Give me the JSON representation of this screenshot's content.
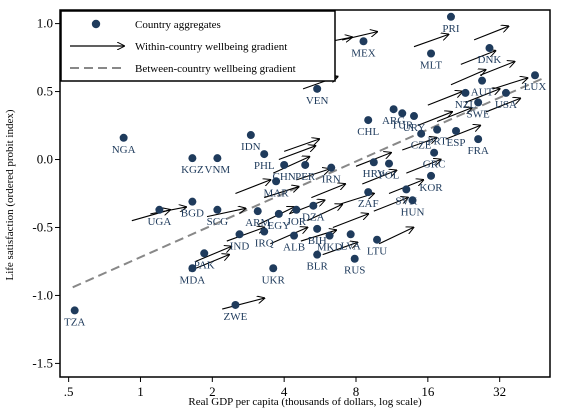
{
  "chart_data": {
    "type": "scatter",
    "xlabel": "Real GDP per capita (thousands of dollars, log scale)",
    "ylabel": "Life satisfaction (ordered probit index)",
    "x_scale": "log",
    "x_ticks": [
      {
        "value": 0.5,
        "label": ".5"
      },
      {
        "value": 1,
        "label": "1"
      },
      {
        "value": 2,
        "label": "2"
      },
      {
        "value": 4,
        "label": "4"
      },
      {
        "value": 8,
        "label": "8"
      },
      {
        "value": 16,
        "label": "16"
      },
      {
        "value": 32,
        "label": "32"
      }
    ],
    "y_ticks": [
      {
        "value": -1.5,
        "label": "-1.5"
      },
      {
        "value": -1.0,
        "label": "-1.0"
      },
      {
        "value": -0.5,
        "label": "-0.5"
      },
      {
        "value": 0.0,
        "label": "0.0"
      },
      {
        "value": 0.5,
        "label": "0.5"
      },
      {
        "value": 1.0,
        "label": "1.0"
      }
    ],
    "xlim": [
      0.46,
      52
    ],
    "ylim": [
      -1.6,
      1.1
    ],
    "grid": false,
    "legend_position": "top-left",
    "legend": {
      "points_label": "Country aggregates",
      "arrows_label": "Within-country wellbeing gradient",
      "line_label": "Between-country wellbeing gradient"
    },
    "colors": {
      "points": "#1f3b5c",
      "arrows": "#000000",
      "line": "#888888"
    },
    "between_line": {
      "x1": 0.52,
      "y1": -0.94,
      "x2": 49,
      "y2": 0.6
    },
    "points": [
      {
        "label": "TZA",
        "x": 0.53,
        "y": -1.11
      },
      {
        "label": "NGA",
        "x": 0.85,
        "y": 0.16
      },
      {
        "label": "UGA",
        "x": 1.2,
        "y": -0.37
      },
      {
        "label": "BGD",
        "x": 1.65,
        "y": -0.31
      },
      {
        "label": "KGZ",
        "x": 1.65,
        "y": 0.01
      },
      {
        "label": "VNM",
        "x": 2.1,
        "y": 0.01
      },
      {
        "label": "MDA",
        "x": 1.65,
        "y": -0.8
      },
      {
        "label": "PAK",
        "x": 1.85,
        "y": -0.69
      },
      {
        "label": "ZWE",
        "x": 2.5,
        "y": -1.07
      },
      {
        "label": "SCG",
        "x": 2.1,
        "y": -0.37
      },
      {
        "label": "IND",
        "x": 2.6,
        "y": -0.55
      },
      {
        "label": "IDN",
        "x": 2.9,
        "y": 0.18
      },
      {
        "label": "PHL",
        "x": 3.3,
        "y": 0.04
      },
      {
        "label": "UKR",
        "x": 3.6,
        "y": -0.8
      },
      {
        "label": "MAR",
        "x": 3.7,
        "y": -0.16
      },
      {
        "label": "CHN",
        "x": 4.0,
        "y": -0.04
      },
      {
        "label": "ARM",
        "x": 3.1,
        "y": -0.38
      },
      {
        "label": "EGY",
        "x": 3.8,
        "y": -0.4
      },
      {
        "label": "JOR",
        "x": 4.5,
        "y": -0.37
      },
      {
        "label": "IRQ",
        "x": 3.3,
        "y": -0.53
      },
      {
        "label": "ALB",
        "x": 4.4,
        "y": -0.56
      },
      {
        "label": "PER",
        "x": 4.9,
        "y": -0.04
      },
      {
        "label": "IRN",
        "x": 6.3,
        "y": -0.06
      },
      {
        "label": "BLR",
        "x": 5.5,
        "y": -0.7
      },
      {
        "label": "DZA",
        "x": 5.3,
        "y": -0.34
      },
      {
        "label": "BIH",
        "x": 5.5,
        "y": -0.51
      },
      {
        "label": "MKD",
        "x": 6.2,
        "y": -0.56
      },
      {
        "label": "LVA",
        "x": 7.6,
        "y": -0.55
      },
      {
        "label": "RUS",
        "x": 7.9,
        "y": -0.73
      },
      {
        "label": "LTU",
        "x": 9.8,
        "y": -0.59
      },
      {
        "label": "VEN",
        "x": 5.5,
        "y": 0.52
      },
      {
        "label": "MEX",
        "x": 8.6,
        "y": 0.87
      },
      {
        "label": "CHL",
        "x": 9.0,
        "y": 0.29
      },
      {
        "label": "HRV",
        "x": 9.5,
        "y": -0.02
      },
      {
        "label": "POL",
        "x": 11.0,
        "y": -0.03
      },
      {
        "label": "ZAF",
        "x": 9.0,
        "y": -0.24
      },
      {
        "label": "SVK",
        "x": 13.0,
        "y": -0.22
      },
      {
        "label": "HUN",
        "x": 13.8,
        "y": -0.3
      },
      {
        "label": "KOR",
        "x": 16.5,
        "y": -0.12
      },
      {
        "label": "GRC",
        "x": 17.0,
        "y": 0.05
      },
      {
        "label": "CZE",
        "x": 15.0,
        "y": 0.19
      },
      {
        "label": "URY",
        "x": 14.0,
        "y": 0.32
      },
      {
        "label": "TUR",
        "x": 12.5,
        "y": 0.34
      },
      {
        "label": "ARG",
        "x": 11.5,
        "y": 0.37
      },
      {
        "label": "PRT",
        "x": 17.5,
        "y": 0.22
      },
      {
        "label": "ESP",
        "x": 21.0,
        "y": 0.21
      },
      {
        "label": "FRA",
        "x": 26.0,
        "y": 0.15
      },
      {
        "label": "MLT",
        "x": 16.5,
        "y": 0.78
      },
      {
        "label": "PRI",
        "x": 20.0,
        "y": 1.05
      },
      {
        "label": "DNK",
        "x": 29.0,
        "y": 0.82
      },
      {
        "label": "NZL",
        "x": 23.0,
        "y": 0.49
      },
      {
        "label": "AUT",
        "x": 27.0,
        "y": 0.58
      },
      {
        "label": "SWE",
        "x": 26.0,
        "y": 0.42
      },
      {
        "label": "USA",
        "x": 34.0,
        "y": 0.49
      },
      {
        "label": "LUX",
        "x": 45.0,
        "y": 0.62
      }
    ],
    "within_arrows": [
      {
        "x": 0.92,
        "y": -0.45,
        "x2": 1.33,
        "y2": -0.37
      },
      {
        "x": 1.1,
        "y": -0.4,
        "x2": 1.55,
        "y2": -0.35
      },
      {
        "x": 1.6,
        "y": -0.82,
        "x2": 2.35,
        "y2": -0.7
      },
      {
        "x": 1.7,
        "y": -0.75,
        "x2": 2.4,
        "y2": -0.64
      },
      {
        "x": 1.9,
        "y": -0.42,
        "x2": 2.75,
        "y2": -0.36
      },
      {
        "x": 2.3,
        "y": -0.6,
        "x2": 3.3,
        "y2": -0.5
      },
      {
        "x": 2.5,
        "y": -0.25,
        "x2": 3.5,
        "y2": -0.15
      },
      {
        "x": 2.2,
        "y": -1.1,
        "x2": 3.3,
        "y2": -1.02
      },
      {
        "x": 3.1,
        "y": -0.48,
        "x2": 4.4,
        "y2": -0.35
      },
      {
        "x": 3.5,
        "y": -0.62,
        "x2": 5.0,
        "y2": -0.5
      },
      {
        "x": 3.3,
        "y": -0.28,
        "x2": 4.6,
        "y2": -0.2
      },
      {
        "x": 3.6,
        "y": -0.1,
        "x2": 5.1,
        "y2": 0.02
      },
      {
        "x": 3.8,
        "y": 0.0,
        "x2": 5.4,
        "y2": 0.1
      },
      {
        "x": 4.2,
        "y": -0.4,
        "x2": 5.9,
        "y2": -0.3
      },
      {
        "x": 4.5,
        "y": -0.15,
        "x2": 6.2,
        "y2": -0.07
      },
      {
        "x": 4.0,
        "y": 0.06,
        "x2": 5.6,
        "y2": 0.15
      },
      {
        "x": 4.7,
        "y": -0.6,
        "x2": 6.6,
        "y2": -0.52
      },
      {
        "x": 5.0,
        "y": -0.45,
        "x2": 7.0,
        "y2": -0.33
      },
      {
        "x": 5.2,
        "y": -0.28,
        "x2": 7.2,
        "y2": -0.18
      },
      {
        "x": 5.8,
        "y": -0.7,
        "x2": 8.1,
        "y2": -0.61
      },
      {
        "x": 6.4,
        "y": -0.5,
        "x2": 9.0,
        "y2": -0.4
      },
      {
        "x": 6.8,
        "y": -0.33,
        "x2": 9.5,
        "y2": -0.25
      },
      {
        "x": 4.8,
        "y": 0.52,
        "x2": 6.7,
        "y2": 0.61
      },
      {
        "x": 5.5,
        "y": 0.85,
        "x2": 7.7,
        "y2": 0.9
      },
      {
        "x": 7.0,
        "y": 0.88,
        "x2": 9.8,
        "y2": 0.94
      },
      {
        "x": 8.0,
        "y": -0.05,
        "x2": 11.2,
        "y2": 0.05
      },
      {
        "x": 8.5,
        "y": -0.18,
        "x2": 11.8,
        "y2": -0.08
      },
      {
        "x": 9.5,
        "y": -0.38,
        "x2": 13.2,
        "y2": -0.28
      },
      {
        "x": 10.0,
        "y": -0.62,
        "x2": 13.9,
        "y2": -0.5
      },
      {
        "x": 11.0,
        "y": -0.25,
        "x2": 15.3,
        "y2": -0.15
      },
      {
        "x": 12.5,
        "y": 0.07,
        "x2": 17.4,
        "y2": 0.16
      },
      {
        "x": 13.0,
        "y": -0.1,
        "x2": 18.1,
        "y2": 0.0
      },
      {
        "x": 14.5,
        "y": 0.25,
        "x2": 20.2,
        "y2": 0.35
      },
      {
        "x": 16.0,
        "y": 0.4,
        "x2": 22.3,
        "y2": 0.5
      },
      {
        "x": 17.5,
        "y": 0.28,
        "x2": 24.4,
        "y2": 0.38
      },
      {
        "x": 19.0,
        "y": 0.15,
        "x2": 26.5,
        "y2": 0.25
      },
      {
        "x": 14.0,
        "y": 0.83,
        "x2": 19.5,
        "y2": 0.92
      },
      {
        "x": 20.0,
        "y": 0.55,
        "x2": 27.9,
        "y2": 0.66
      },
      {
        "x": 22.0,
        "y": 0.7,
        "x2": 30.7,
        "y2": 0.8
      },
      {
        "x": 23.0,
        "y": 0.42,
        "x2": 32.0,
        "y2": 0.52
      },
      {
        "x": 25.0,
        "y": 0.88,
        "x2": 34.8,
        "y2": 0.98
      },
      {
        "x": 26.5,
        "y": 0.62,
        "x2": 36.9,
        "y2": 0.72
      },
      {
        "x": 28.0,
        "y": 0.35,
        "x2": 39.0,
        "y2": 0.45
      },
      {
        "x": 30.0,
        "y": 0.52,
        "x2": 41.8,
        "y2": 0.6
      }
    ]
  }
}
